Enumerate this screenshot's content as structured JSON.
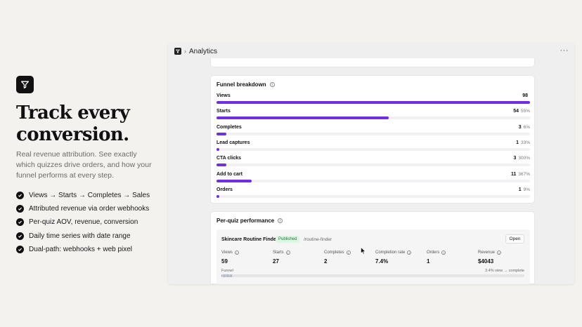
{
  "hero": {
    "logo_icon": "funnel-icon",
    "title": "Track every conversion.",
    "subtitle": "Real revenue attribution. See exactly which quizzes drive orders, and how your funnel performs at every step.",
    "features": [
      "Views → Starts → Completes → Sales",
      "Attributed revenue via order webhooks",
      "Per-quiz AOV, revenue, conversion",
      "Daily time series with date range",
      "Dual-path: webhooks + web pixel"
    ]
  },
  "window": {
    "title": "Analytics",
    "breadcrumb_sep": "›",
    "more_icon": "more-horizontal-icon",
    "more_glyph": "···"
  },
  "funnel": {
    "title": "Funnel breakdown",
    "accent": "#6d2fe0",
    "rows": [
      {
        "label": "Views",
        "count": "98",
        "pct": "",
        "fill": 1.0
      },
      {
        "label": "Starts",
        "count": "54",
        "pct": "55%",
        "fill": 0.55
      },
      {
        "label": "Completes",
        "count": "3",
        "pct": "6%",
        "fill": 0.031
      },
      {
        "label": "Lead captures",
        "count": "1",
        "pct": "33%",
        "fill": 0.01
      },
      {
        "label": "CTA clicks",
        "count": "3",
        "pct": "300%",
        "fill": 0.031
      },
      {
        "label": "Add to cart",
        "count": "11",
        "pct": "367%",
        "fill": 0.112
      },
      {
        "label": "Orders",
        "count": "1",
        "pct": "9%",
        "fill": 0.01
      }
    ]
  },
  "per_quiz": {
    "title": "Per-quiz performance",
    "quiz": {
      "name": "Skincare Routine Finder",
      "status": "Published",
      "slug": "/routine-finder",
      "open_label": "Open",
      "stats": [
        {
          "label": "Views",
          "value": "59"
        },
        {
          "label": "Starts",
          "value": "27"
        },
        {
          "label": "Completes",
          "value": "2"
        },
        {
          "label": "Completion rate",
          "value": "7.4%"
        },
        {
          "label": "Orders",
          "value": "1"
        },
        {
          "label": "Revenue",
          "value": "$4043"
        }
      ],
      "funnel_label": "Funnel",
      "funnel_note": "3.4% view → complete",
      "funnel_fill": 0.034
    }
  }
}
